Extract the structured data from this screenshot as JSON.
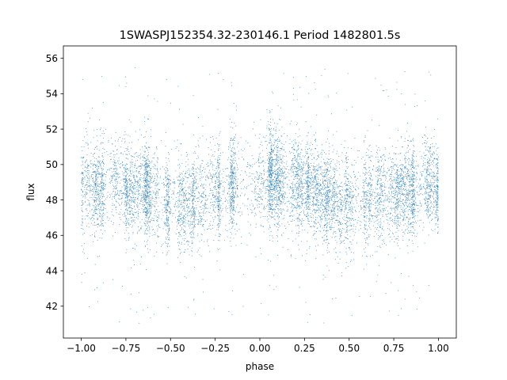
{
  "chart_data": {
    "type": "scatter",
    "title": "1SWASPJ152354.32-230146.1 Period 1482801.5s",
    "xlabel": "phase",
    "ylabel": "flux",
    "xlim": [
      -1.1,
      1.1
    ],
    "ylim": [
      40.2,
      56.7
    ],
    "x_ticks": [
      -1.0,
      -0.75,
      -0.5,
      -0.25,
      0.0,
      0.25,
      0.5,
      0.75,
      1.0
    ],
    "x_tick_labels": [
      "−1.00",
      "−0.75",
      "−0.50",
      "−0.25",
      "0.00",
      "0.25",
      "0.50",
      "0.75",
      "1.00"
    ],
    "y_ticks": [
      42,
      44,
      46,
      48,
      50,
      52,
      54,
      56
    ],
    "y_tick_labels": [
      "42",
      "44",
      "46",
      "48",
      "50",
      "52",
      "54",
      "56"
    ],
    "grid": false,
    "legend": "none",
    "marker_color": "#1f77b4",
    "series": [
      {
        "x_range": [
          -1.0,
          1.0
        ],
        "profile": {
          "phase": [
            -1.0,
            -0.9,
            -0.8,
            -0.7,
            -0.6,
            -0.5,
            -0.4,
            -0.3,
            -0.2,
            -0.1,
            0.0,
            0.1,
            0.2,
            0.3,
            0.4,
            0.5,
            0.6,
            0.7,
            0.8,
            0.9,
            1.0
          ],
          "mean_flux": [
            48.6,
            48.8,
            49.0,
            48.6,
            48.2,
            47.8,
            47.9,
            48.3,
            48.5,
            48.8,
            49.0,
            49.1,
            48.9,
            48.5,
            48.1,
            47.9,
            48.0,
            48.2,
            48.4,
            48.5,
            48.6
          ]
        },
        "scatter_sigma": 1.3,
        "outlier_range": [
          41.0,
          55.5
        ]
      }
    ]
  }
}
